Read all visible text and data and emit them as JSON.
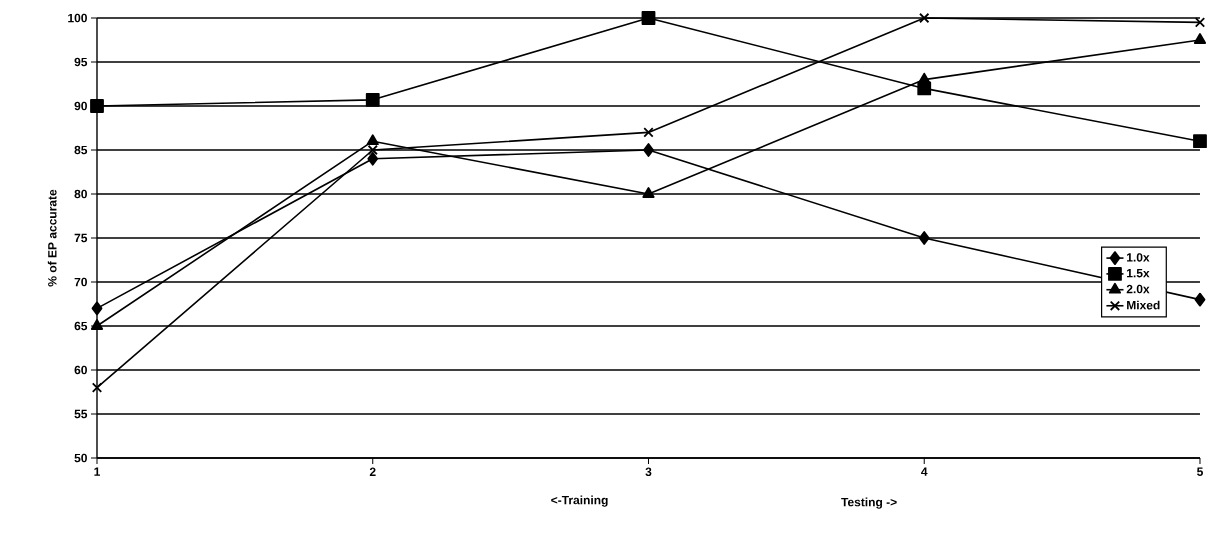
{
  "chart_data": {
    "type": "line",
    "ylabel": "% of EP accurate",
    "xlabel": "<-Training",
    "annotations": [
      "Testing ->"
    ],
    "x": [
      1,
      2,
      3,
      4,
      5
    ],
    "xlim": [
      1,
      5
    ],
    "xticks": [
      1,
      2,
      3,
      4,
      5
    ],
    "ylim": [
      50,
      100
    ],
    "yticks": [
      50,
      55,
      60,
      65,
      70,
      75,
      80,
      85,
      90,
      95,
      100
    ],
    "grid": "y",
    "legend": "right",
    "line_style": "solid",
    "series": [
      {
        "name": "1.0x",
        "color": "#000000",
        "marker": "diamond",
        "values": [
          67,
          84,
          85,
          75,
          68
        ]
      },
      {
        "name": "1.5x",
        "color": "#000000",
        "marker": "square",
        "values": [
          90,
          90.7,
          100,
          92,
          86
        ]
      },
      {
        "name": "2.0x",
        "color": "#000000",
        "marker": "triangle",
        "values": [
          65,
          86,
          80,
          93,
          97.5
        ]
      },
      {
        "name": "Mixed",
        "color": "#000000",
        "marker": "cross",
        "values": [
          58,
          85,
          87,
          100,
          99.5
        ]
      }
    ]
  }
}
